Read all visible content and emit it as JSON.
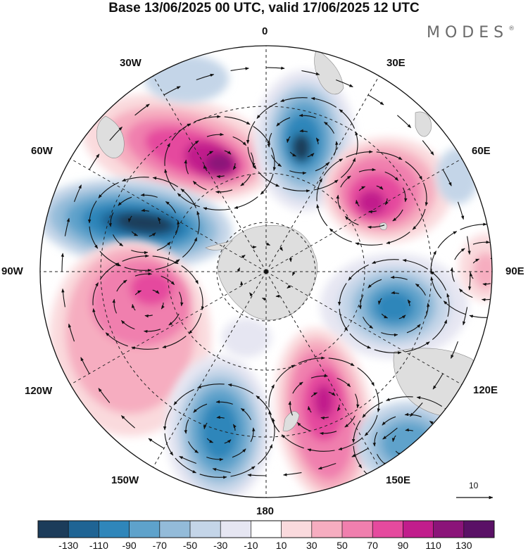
{
  "title": "Base 13/06/2025 00 UTC, valid 17/06/2025 12 UTC",
  "brand": {
    "name": "MODES",
    "mark": "®"
  },
  "longitude_labels": {
    "deg0": "0",
    "deg30e": "30E",
    "deg60e": "60E",
    "deg90e": "90E",
    "deg120e": "120E",
    "deg150e": "150E",
    "deg180": "180",
    "deg150w": "150W",
    "deg120w": "120W",
    "deg90w": "90W",
    "deg60w": "60W",
    "deg30w": "30W"
  },
  "vector_scale": {
    "label": "10"
  },
  "colorbar": {
    "labels": [
      "-130",
      "-110",
      "-90",
      "-70",
      "-50",
      "-30",
      "-10",
      "10",
      "30",
      "50",
      "70",
      "90",
      "110",
      "130"
    ],
    "colors": [
      "#1c3c5a",
      "#1f6494",
      "#2f86ba",
      "#5ea2cb",
      "#93bbd9",
      "#c4d5e8",
      "#e6e6f2",
      "#ffffff",
      "#fadadd",
      "#f6adc0",
      "#f07fae",
      "#e54a9e",
      "#c11d8c",
      "#8b1479",
      "#5a1166"
    ]
  },
  "colors": {
    "land": "#dedede",
    "grid": "#222222",
    "background": "#ffffff"
  }
}
